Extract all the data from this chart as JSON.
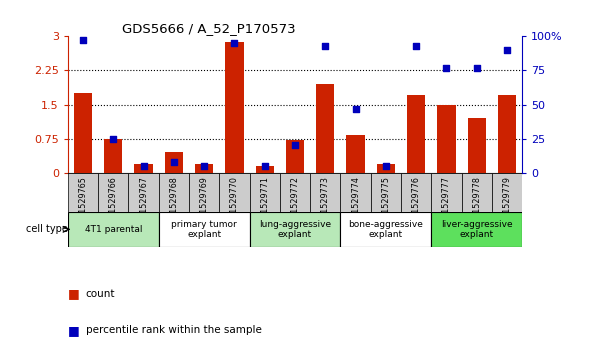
{
  "title": "GDS5666 / A_52_P170573",
  "samples": [
    "GSM1529765",
    "GSM1529766",
    "GSM1529767",
    "GSM1529768",
    "GSM1529769",
    "GSM1529770",
    "GSM1529771",
    "GSM1529772",
    "GSM1529773",
    "GSM1529774",
    "GSM1529775",
    "GSM1529776",
    "GSM1529777",
    "GSM1529778",
    "GSM1529779"
  ],
  "counts": [
    1.75,
    0.75,
    0.2,
    0.45,
    0.2,
    2.88,
    0.15,
    0.72,
    1.95,
    0.82,
    0.2,
    1.72,
    1.5,
    1.2,
    1.72
  ],
  "percentiles": [
    97,
    25,
    5,
    8,
    5,
    95,
    5,
    20,
    93,
    47,
    5,
    93,
    77,
    77,
    90
  ],
  "ylim_left": [
    0,
    3
  ],
  "ylim_right": [
    0,
    100
  ],
  "yticks_left": [
    0,
    0.75,
    1.5,
    2.25,
    3
  ],
  "yticks_right": [
    0,
    25,
    50,
    75,
    100
  ],
  "groups": [
    {
      "label": "4T1 parental",
      "start": 0,
      "end": 2,
      "color": "#b8e8b8"
    },
    {
      "label": "primary tumor\nexplant",
      "start": 3,
      "end": 5,
      "color": "#ffffff"
    },
    {
      "label": "lung-aggressive\nexplant",
      "start": 6,
      "end": 8,
      "color": "#b8e8b8"
    },
    {
      "label": "bone-aggressive\nexplant",
      "start": 9,
      "end": 11,
      "color": "#ffffff"
    },
    {
      "label": "liver-aggressive\nexplant",
      "start": 12,
      "end": 14,
      "color": "#5de05d"
    }
  ],
  "bar_color": "#cc2200",
  "dot_color": "#0000bb",
  "sample_bg_color": "#cccccc",
  "left_tick_color": "#cc2200",
  "right_tick_color": "#0000bb",
  "legend_count_label": "count",
  "legend_pct_label": "percentile rank within the sample",
  "cell_type_label": "cell type"
}
